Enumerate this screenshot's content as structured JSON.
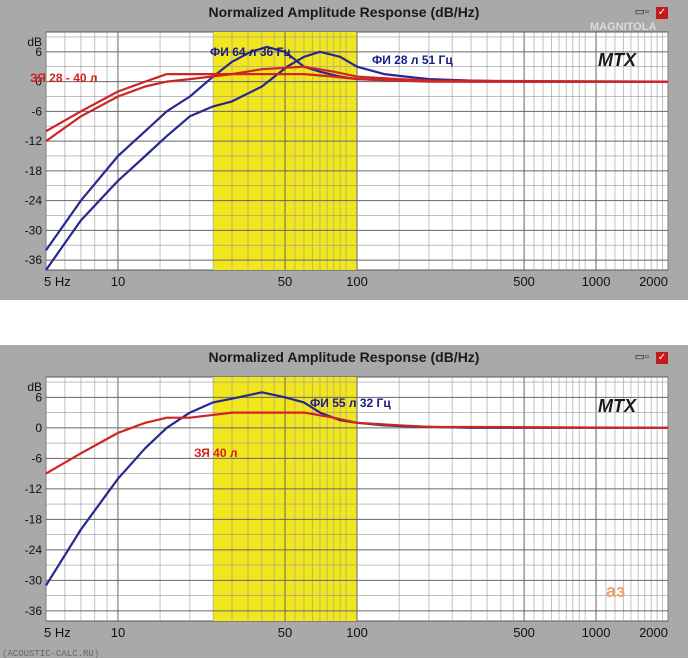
{
  "page": {
    "watermark": "MAGNITOLA"
  },
  "panels": [
    {
      "title": "Normalized Amplitude Response (dB/Hz)",
      "icons": [
        "window-icon",
        "check-icon"
      ],
      "brand": "MTX",
      "y_unit_label": "dB",
      "annotations": [
        {
          "text": "ФИ 64 л 36 Гц",
          "color": "#1a1a8c"
        },
        {
          "text": "ФИ 28 л 51 Гц",
          "color": "#1a1a8c"
        },
        {
          "text": "ЗЯ 28 - 40 л",
          "color": "#d42020"
        }
      ],
      "footer": ""
    },
    {
      "title": "Normalized Amplitude Response (dB/Hz)",
      "icons": [
        "window-icon",
        "check-icon"
      ],
      "brand": "MTX",
      "y_unit_label": "dB",
      "annotations": [
        {
          "text": "ФИ 55 л 32 Гц",
          "color": "#1a1a8c"
        },
        {
          "text": "ЗЯ 40 л",
          "color": "#d42020"
        }
      ],
      "stamp": "аз",
      "footer": "(ACOUSTIC-CALC.RU)"
    }
  ],
  "chart_data": [
    {
      "type": "line",
      "title": "Normalized Amplitude Response (dB/Hz)",
      "x_scale": "log",
      "xlim": [
        5,
        2000
      ],
      "ylim": [
        -38,
        10
      ],
      "x_ticks": [
        5,
        10,
        50,
        100,
        500,
        1000,
        2000
      ],
      "x_tick_labels": [
        "5 Hz",
        "10",
        "50",
        "100",
        "500",
        "1000",
        "2000"
      ],
      "y_ticks": [
        6,
        0,
        -6,
        -12,
        -18,
        -24,
        -30,
        -36
      ],
      "y_tick_labels": [
        "6",
        "0",
        "-6",
        "-12",
        "-18",
        "-24",
        "-30",
        "-36"
      ],
      "highlight_band": [
        25,
        100
      ],
      "series": [
        {
          "name": "ФИ 64 л 36 Гц",
          "color": "#27278f",
          "x": [
            5,
            7,
            10,
            13,
            16,
            20,
            25,
            30,
            36,
            42,
            50,
            60,
            70,
            85,
            100,
            130,
            160,
            200,
            300,
            500,
            2000
          ],
          "y": [
            -34,
            -24,
            -15,
            -10,
            -6,
            -3,
            1,
            4,
            6,
            7,
            6,
            3,
            2,
            1,
            0.5,
            0.3,
            0.2,
            0.1,
            0,
            0,
            0
          ]
        },
        {
          "name": "ФИ 28 л 51 Гц",
          "color": "#27278f",
          "x": [
            5,
            7,
            10,
            13,
            16,
            20,
            25,
            30,
            40,
            51,
            60,
            70,
            85,
            100,
            130,
            160,
            200,
            300,
            500,
            2000
          ],
          "y": [
            -38,
            -28,
            -20,
            -15,
            -11,
            -7,
            -5,
            -4,
            -1,
            3,
            5,
            6,
            5,
            3,
            1.5,
            1,
            0.5,
            0.2,
            0,
            0
          ]
        },
        {
          "name": "ЗЯ 28 л",
          "color": "#cf2424",
          "x": [
            5,
            7,
            10,
            13,
            16,
            20,
            30,
            40,
            60,
            80,
            100,
            150,
            200,
            2000
          ],
          "y": [
            -10,
            -6,
            -2,
            0,
            1.5,
            1.5,
            1.5,
            1.5,
            1.5,
            1,
            0.5,
            0.2,
            0,
            0
          ]
        },
        {
          "name": "ЗЯ 40 л",
          "color": "#cf2424",
          "x": [
            5,
            7,
            10,
            13,
            16,
            20,
            30,
            40,
            60,
            80,
            100,
            150,
            200,
            2000
          ],
          "y": [
            -12,
            -7,
            -3,
            -1,
            0,
            0.5,
            1.5,
            2.5,
            3,
            2,
            1,
            0.5,
            0.2,
            0
          ]
        }
      ]
    },
    {
      "type": "line",
      "title": "Normalized Amplitude Response (dB/Hz)",
      "x_scale": "log",
      "xlim": [
        5,
        2000
      ],
      "ylim": [
        -38,
        10
      ],
      "x_ticks": [
        5,
        10,
        50,
        100,
        500,
        1000,
        2000
      ],
      "x_tick_labels": [
        "5 Hz",
        "10",
        "50",
        "100",
        "500",
        "1000",
        "2000"
      ],
      "y_ticks": [
        6,
        0,
        -6,
        -12,
        -18,
        -24,
        -30,
        -36
      ],
      "y_tick_labels": [
        "6",
        "0",
        "-6",
        "-12",
        "-18",
        "-24",
        "-30",
        "-36"
      ],
      "highlight_band": [
        25,
        100
      ],
      "series": [
        {
          "name": "ФИ 55 л 32 Гц",
          "color": "#27278f",
          "x": [
            5,
            7,
            10,
            13,
            16,
            20,
            25,
            32,
            40,
            50,
            60,
            70,
            85,
            100,
            130,
            160,
            200,
            300,
            2000
          ],
          "y": [
            -31,
            -20,
            -10,
            -4,
            0,
            3,
            5,
            6,
            7,
            6,
            5,
            3,
            1.5,
            1,
            0.5,
            0.3,
            0.2,
            0,
            0
          ]
        },
        {
          "name": "ЗЯ 40 л",
          "color": "#cf2424",
          "x": [
            5,
            7,
            10,
            13,
            16,
            20,
            30,
            40,
            60,
            80,
            100,
            150,
            200,
            2000
          ],
          "y": [
            -9,
            -5,
            -1,
            1,
            2,
            2,
            3,
            3,
            3,
            2,
            1,
            0.5,
            0.2,
            0
          ]
        }
      ]
    }
  ]
}
